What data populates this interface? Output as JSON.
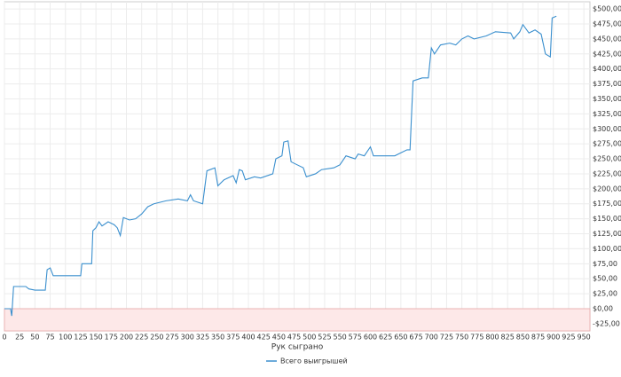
{
  "chart_data": {
    "type": "line",
    "x_label": "Рук сыграно",
    "xlim": [
      0,
      960
    ],
    "ylim": [
      -37,
      512
    ],
    "xticks": [
      0,
      25,
      50,
      75,
      100,
      125,
      150,
      175,
      200,
      225,
      250,
      275,
      300,
      325,
      350,
      375,
      400,
      425,
      450,
      475,
      500,
      525,
      550,
      575,
      600,
      625,
      650,
      675,
      700,
      725,
      750,
      775,
      800,
      825,
      850,
      875,
      900,
      925,
      950
    ],
    "yticks": [
      {
        "value": -25,
        "label": "-$25,00"
      },
      {
        "value": 0,
        "label": "$0,00"
      },
      {
        "value": 25,
        "label": "$25,00"
      },
      {
        "value": 50,
        "label": "$50,00"
      },
      {
        "value": 75,
        "label": "$75,00"
      },
      {
        "value": 100,
        "label": "$100,00"
      },
      {
        "value": 125,
        "label": "$125,00"
      },
      {
        "value": 150,
        "label": "$150,00"
      },
      {
        "value": 175,
        "label": "$175,00"
      },
      {
        "value": 200,
        "label": "$200,00"
      },
      {
        "value": 225,
        "label": "$225,00"
      },
      {
        "value": 250,
        "label": "$250,00"
      },
      {
        "value": 275,
        "label": "$275,00"
      },
      {
        "value": 300,
        "label": "$300,00"
      },
      {
        "value": 325,
        "label": "$325,00"
      },
      {
        "value": 350,
        "label": "$350,00"
      },
      {
        "value": 375,
        "label": "$375,00"
      },
      {
        "value": 400,
        "label": "$400,00"
      },
      {
        "value": 425,
        "label": "$425,00"
      },
      {
        "value": 450,
        "label": "$450,00"
      },
      {
        "value": 475,
        "label": "$475,00"
      },
      {
        "value": 500,
        "label": "$500,00"
      }
    ],
    "grid": true,
    "negative_region_color": "#fde8e8",
    "legend": "bottom",
    "x": [
      0,
      10,
      12,
      15,
      35,
      40,
      50,
      67,
      70,
      75,
      80,
      125,
      127,
      143,
      145,
      150,
      155,
      160,
      170,
      180,
      185,
      190,
      195,
      205,
      215,
      225,
      235,
      245,
      265,
      285,
      300,
      305,
      310,
      325,
      332,
      345,
      350,
      360,
      375,
      380,
      385,
      390,
      395,
      410,
      420,
      440,
      445,
      455,
      458,
      465,
      470,
      480,
      490,
      495,
      510,
      520,
      540,
      550,
      560,
      575,
      580,
      590,
      600,
      605,
      640,
      650,
      660,
      665,
      668,
      670,
      685,
      695,
      700,
      705,
      715,
      730,
      740,
      750,
      760,
      770,
      790,
      805,
      830,
      835,
      845,
      850,
      860,
      870,
      880,
      887,
      895,
      898,
      905
    ],
    "series": [
      {
        "name": "Всего выигрышей",
        "color": "#3a8fce",
        "values": [
          0,
          0,
          -12,
          37,
          37,
          33,
          31,
          31,
          65,
          68,
          55,
          55,
          75,
          75,
          130,
          135,
          145,
          138,
          145,
          140,
          135,
          122,
          152,
          148,
          150,
          158,
          170,
          175,
          180,
          183,
          180,
          190,
          180,
          175,
          230,
          235,
          205,
          215,
          222,
          210,
          232,
          230,
          215,
          220,
          218,
          225,
          250,
          255,
          278,
          280,
          245,
          240,
          235,
          220,
          225,
          232,
          235,
          240,
          255,
          250,
          258,
          255,
          270,
          255,
          255,
          260,
          265,
          265,
          335,
          380,
          385,
          385,
          435,
          425,
          440,
          443,
          440,
          450,
          455,
          450,
          455,
          462,
          460,
          450,
          462,
          474,
          460,
          465,
          458,
          425,
          420,
          485,
          488
        ]
      }
    ]
  }
}
